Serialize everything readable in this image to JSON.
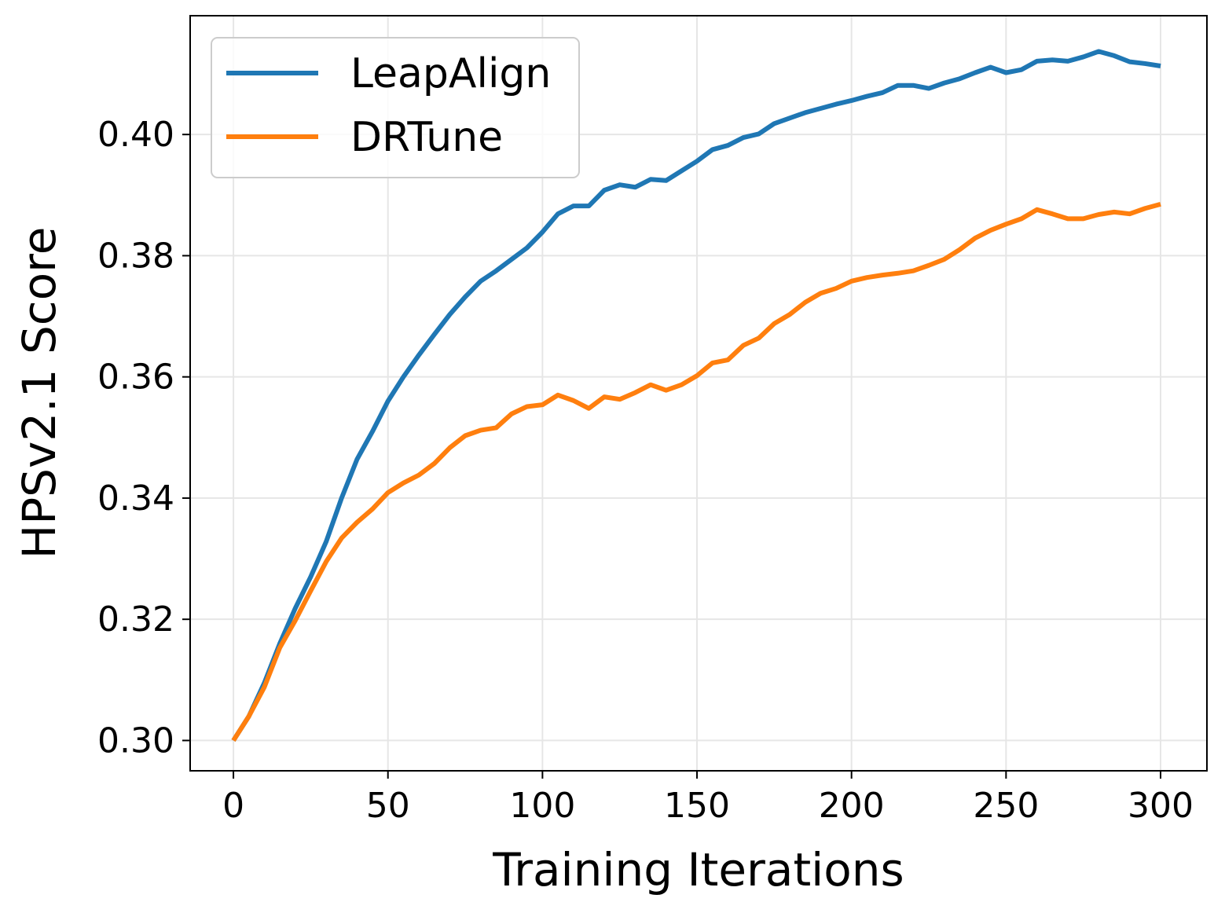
{
  "chart_data": {
    "type": "line",
    "title": "",
    "xlabel": "Training Iterations",
    "ylabel": "HPSv2.1 Score",
    "xlim": [
      -14,
      315
    ],
    "ylim": [
      0.295,
      0.4196
    ],
    "xticks": [
      0,
      50,
      100,
      150,
      200,
      250,
      300
    ],
    "xtick_labels": [
      "0",
      "50",
      "100",
      "150",
      "200",
      "250",
      "300"
    ],
    "yticks": [
      0.3,
      0.32,
      0.34,
      0.36,
      0.38,
      0.4
    ],
    "ytick_labels": [
      "0.30",
      "0.32",
      "0.34",
      "0.36",
      "0.38",
      "0.40"
    ],
    "grid": true,
    "legend_position": "top-left",
    "x": [
      0,
      5,
      10,
      15,
      20,
      25,
      30,
      35,
      40,
      45,
      50,
      55,
      60,
      65,
      70,
      75,
      80,
      85,
      90,
      95,
      100,
      105,
      110,
      115,
      120,
      125,
      130,
      135,
      140,
      145,
      150,
      155,
      160,
      165,
      170,
      175,
      180,
      185,
      190,
      195,
      200,
      205,
      210,
      215,
      220,
      225,
      230,
      235,
      240,
      245,
      250,
      255,
      260,
      265,
      270,
      275,
      280,
      285,
      290,
      295,
      300
    ],
    "series": [
      {
        "name": "LeapAlign",
        "color": "#1f77b4",
        "values": [
          0.3,
          0.304,
          0.3095,
          0.316,
          0.3218,
          0.327,
          0.3328,
          0.34,
          0.3464,
          0.351,
          0.356,
          0.36,
          0.3636,
          0.367,
          0.3703,
          0.3732,
          0.3758,
          0.3775,
          0.3794,
          0.3813,
          0.3839,
          0.3869,
          0.3882,
          0.3882,
          0.3908,
          0.3917,
          0.3913,
          0.3926,
          0.3924,
          0.394,
          0.3956,
          0.3975,
          0.3982,
          0.3995,
          0.4001,
          0.4018,
          0.4027,
          0.4036,
          0.4043,
          0.405,
          0.4056,
          0.4063,
          0.4069,
          0.4081,
          0.4081,
          0.4076,
          0.4085,
          0.4092,
          0.4102,
          0.4111,
          0.4102,
          0.4107,
          0.4121,
          0.4123,
          0.4121,
          0.4128,
          0.4137,
          0.413,
          0.412,
          0.4117,
          0.4113
        ]
      },
      {
        "name": "DRTune",
        "color": "#ff7f0e",
        "values": [
          0.3,
          0.304,
          0.3088,
          0.3153,
          0.3198,
          0.3247,
          0.3295,
          0.3334,
          0.336,
          0.3382,
          0.3409,
          0.3425,
          0.3438,
          0.3457,
          0.3483,
          0.3503,
          0.3512,
          0.3516,
          0.3539,
          0.3551,
          0.3554,
          0.357,
          0.3561,
          0.3548,
          0.3567,
          0.3563,
          0.3574,
          0.3587,
          0.3578,
          0.3587,
          0.3602,
          0.3623,
          0.3628,
          0.3652,
          0.3664,
          0.3688,
          0.3703,
          0.3723,
          0.3738,
          0.3746,
          0.3758,
          0.3764,
          0.3768,
          0.3771,
          0.3775,
          0.3784,
          0.3794,
          0.381,
          0.3829,
          0.3842,
          0.3852,
          0.3861,
          0.3876,
          0.3869,
          0.3861,
          0.3861,
          0.3868,
          0.3872,
          0.3869,
          0.3878,
          0.3885
        ]
      }
    ]
  }
}
